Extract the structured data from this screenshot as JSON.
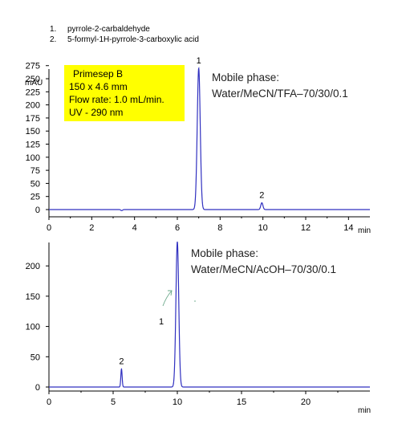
{
  "legend": [
    {
      "num": "1.",
      "name": "pyrrole-2-carbaldehyde"
    },
    {
      "num": "2.",
      "name": "5-formyl-1H-pyrrole-3-carboxylic acid"
    }
  ],
  "info_box": {
    "column": "Primesep B",
    "dimensions": "150 x 4.6 mm",
    "flow_rate": "Flow rate: 1.0 mL/min.",
    "detection": "UV - 290 nm"
  },
  "colors": {
    "trace": "#3030c0",
    "box": "#ffff00",
    "axis": "#000000",
    "arrow": "#6aa88a"
  },
  "chart_data": [
    {
      "type": "line",
      "title": "",
      "mobile_phase_label": "Mobile phase:",
      "mobile_phase": "Water/MeCN/TFA–70/30/0.1",
      "ylabel": "mAU",
      "xlabel": "min",
      "xlim": [
        0,
        15
      ],
      "ylim": [
        -10,
        300
      ],
      "xticks": [
        "0",
        "2",
        "4",
        "6",
        "8",
        "10",
        "12",
        "14"
      ],
      "yticks": [
        "0",
        "25",
        "50",
        "75",
        "100",
        "125",
        "150",
        "175",
        "200",
        "225",
        "250",
        "275"
      ],
      "grid": false,
      "peaks": [
        {
          "label": "1",
          "time": 7.0,
          "height": 270,
          "width": 0.07
        },
        {
          "label": "2",
          "time": 9.95,
          "height": 13,
          "width": 0.05
        }
      ],
      "minor_dips": [
        {
          "time": 3.4,
          "depth": 2
        }
      ]
    },
    {
      "type": "line",
      "title": "",
      "mobile_phase_label": "Mobile phase:",
      "mobile_phase": "Water/MeCN/AcOH–70/30/0.1",
      "ylabel": "",
      "xlabel": "min",
      "xlim": [
        0,
        25
      ],
      "ylim": [
        -5,
        240
      ],
      "xticks": [
        "0",
        "5",
        "10",
        "15",
        "20"
      ],
      "yticks": [
        "0",
        "50",
        "100",
        "150",
        "200"
      ],
      "grid": false,
      "peaks": [
        {
          "label": "1",
          "time": 10.0,
          "height": 240,
          "width": 0.11
        },
        {
          "label": "2",
          "time": 5.65,
          "height": 30,
          "width": 0.05
        }
      ],
      "minor_dips": []
    }
  ]
}
